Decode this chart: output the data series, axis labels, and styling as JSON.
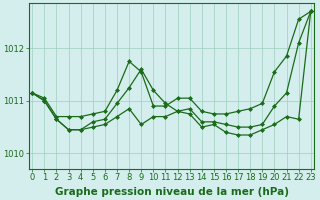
{
  "title": "Graphe pression niveau de la mer (hPa)",
  "x": [
    0,
    1,
    2,
    3,
    4,
    5,
    6,
    7,
    8,
    9,
    10,
    11,
    12,
    13,
    14,
    15,
    16,
    17,
    18,
    19,
    20,
    21,
    22,
    23
  ],
  "line_max": [
    1011.15,
    1011.05,
    1010.7,
    1010.7,
    1010.7,
    1010.75,
    1010.8,
    1011.2,
    1011.75,
    1011.55,
    1010.9,
    1010.9,
    1011.05,
    1011.05,
    1010.8,
    1010.75,
    1010.75,
    1010.8,
    1010.85,
    1010.95,
    1011.55,
    1011.85,
    1012.55,
    1012.7
  ],
  "line_mid": [
    1011.15,
    1011.0,
    1010.65,
    1010.45,
    1010.45,
    1010.6,
    1010.65,
    1010.95,
    1011.25,
    1011.6,
    1011.2,
    1010.95,
    1010.8,
    1010.85,
    1010.6,
    1010.6,
    1010.55,
    1010.5,
    1010.5,
    1010.55,
    1010.9,
    1011.15,
    1012.1,
    1012.7
  ],
  "line_min": [
    1011.15,
    1011.0,
    1010.65,
    1010.45,
    1010.45,
    1010.5,
    1010.55,
    1010.7,
    1010.85,
    1010.55,
    1010.7,
    1010.7,
    1010.8,
    1010.75,
    1010.5,
    1010.55,
    1010.4,
    1010.35,
    1010.35,
    1010.45,
    1010.55,
    1010.7,
    1010.65,
    1012.7
  ],
  "ylim": [
    1009.7,
    1012.85
  ],
  "yticks": [
    1010,
    1011,
    1012
  ],
  "xticks": [
    0,
    1,
    2,
    3,
    4,
    5,
    6,
    7,
    8,
    9,
    10,
    11,
    12,
    13,
    14,
    15,
    16,
    17,
    18,
    19,
    20,
    21,
    22,
    23
  ],
  "line_color": "#1a6b1a",
  "bg_color": "#d4eeed",
  "grid_color": "#9ecfbf",
  "marker": "D",
  "marker_size": 2,
  "lw": 0.9,
  "title_fontsize": 7.5,
  "tick_fontsize": 6
}
